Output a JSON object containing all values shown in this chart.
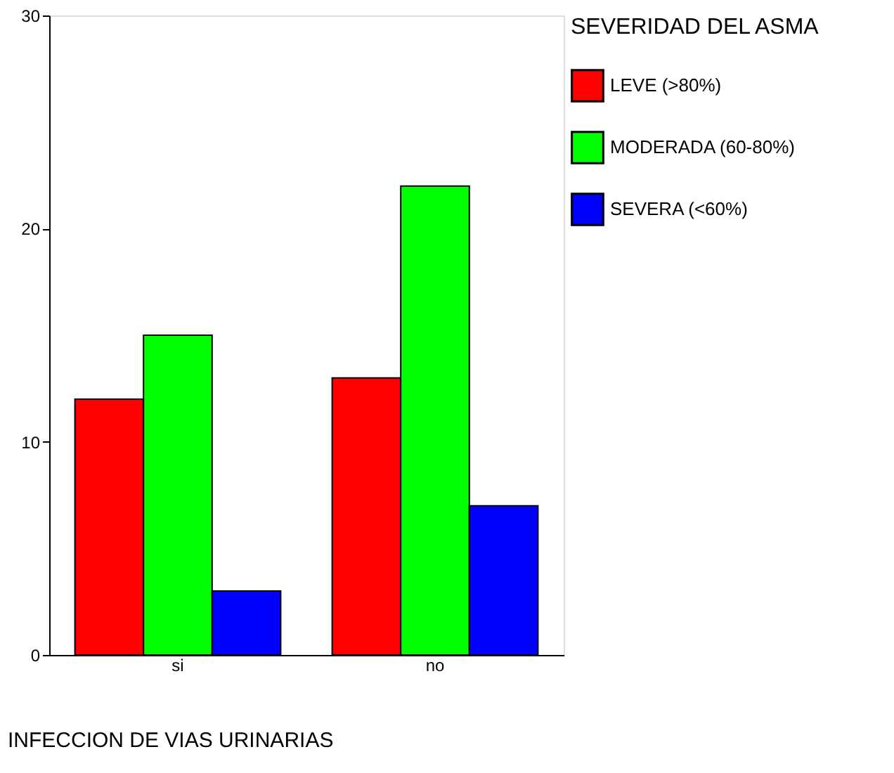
{
  "chart_data": {
    "type": "bar",
    "xlabel": "INFECCION DE VIAS URINARIAS",
    "legend_title": "SEVERIDAD DEL ASMA",
    "categories": [
      "si",
      "no"
    ],
    "series": [
      {
        "name": "LEVE (>80%)",
        "color": "#ff0000",
        "values": [
          12,
          13
        ]
      },
      {
        "name": "MODERADA (60-80%)",
        "color": "#00ff00",
        "values": [
          15,
          22
        ]
      },
      {
        "name": "SEVERA (<60%)",
        "color": "#0000ff",
        "values": [
          3,
          7
        ]
      }
    ],
    "ylim": [
      0,
      30
    ],
    "yticks": [
      0,
      10,
      20,
      30
    ],
    "grid": false,
    "legend": "right"
  }
}
